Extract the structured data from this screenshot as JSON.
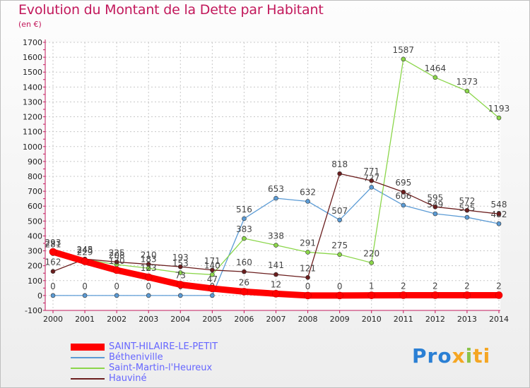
{
  "chart_data": {
    "type": "line",
    "title": "Evolution du Montant de la Dette par Habitant",
    "unit_label": "(en €)",
    "ylim": [
      -100,
      1700
    ],
    "yticks": [
      -100,
      0,
      100,
      200,
      300,
      400,
      500,
      600,
      700,
      800,
      900,
      1000,
      1100,
      1200,
      1300,
      1400,
      1500,
      1600,
      1700
    ],
    "x": [
      "2000",
      "2001",
      "2002",
      "2003",
      "2004",
      "2005",
      "2006",
      "2007",
      "2008",
      "2009",
      "2010",
      "2011",
      "2012",
      "2013",
      "2014"
    ],
    "series": [
      {
        "name": "SAINT-HILAIRE-LE-PETIT",
        "color": "#ff0000",
        "values": [
          293,
          229,
          170,
          123,
          73,
          47,
          26,
          12,
          0,
          0,
          1,
          2,
          2,
          2,
          2
        ],
        "labels": [
          "293",
          "229",
          "170",
          "123",
          "73",
          "47",
          "26",
          "12",
          "0",
          "0",
          "1",
          "2",
          "2",
          "2",
          "2"
        ]
      },
      {
        "name": "Bétheniville",
        "color": "#5b9bd5",
        "values": [
          0,
          0,
          0,
          0,
          0,
          0,
          516,
          653,
          632,
          507,
          727,
          606,
          549,
          525,
          482
        ],
        "labels": [
          "0",
          "0",
          "0",
          "0",
          "0",
          "0",
          "516",
          "653",
          "632",
          "507",
          "727",
          "606",
          "549",
          "525",
          "482"
        ]
      },
      {
        "name": "Saint-Martin-l'Heureux",
        "color": "#8bd64a",
        "values": [
          281,
          243,
          208,
          183,
          153,
          140,
          383,
          338,
          291,
          275,
          220,
          1587,
          1464,
          1373,
          1193
        ],
        "labels": [
          "281",
          "243",
          "208",
          "183",
          "153",
          "140",
          "383",
          "338",
          "291",
          "275",
          "220",
          "1587",
          "1464",
          "1373",
          "1193"
        ]
      },
      {
        "name": "Hauviné",
        "color": "#6b1e1e",
        "values": [
          162,
          245,
          225,
          210,
          193,
          171,
          160,
          141,
          121,
          818,
          771,
          695,
          595,
          572,
          548
        ],
        "labels": [
          "162",
          "245",
          "225",
          "210",
          "193",
          "171",
          "160",
          "141",
          "121",
          "818",
          "771",
          "695",
          "595",
          "572",
          "548"
        ]
      }
    ]
  },
  "logo": {
    "p1": "Pro",
    "p2": "x",
    "p3": "i",
    "p4": "ti"
  }
}
